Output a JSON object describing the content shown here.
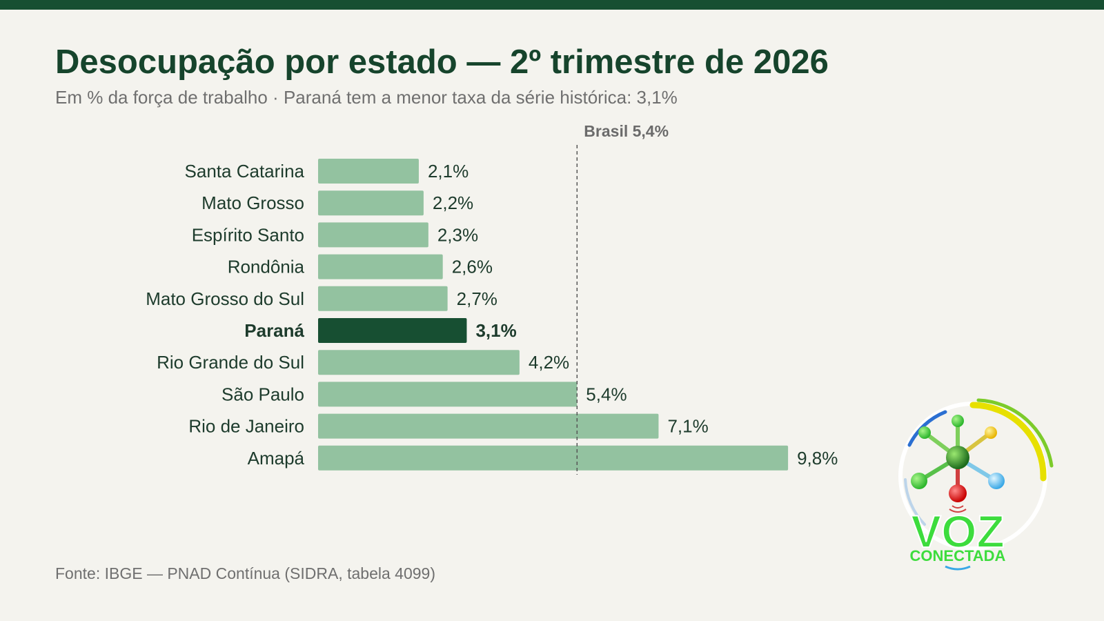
{
  "header": {
    "title": "Desocupação por estado — 2º trimestre de 2026",
    "subtitle": "Em % da força de trabalho · Paraná tem a menor taxa da série histórica: 3,1%"
  },
  "footer": {
    "source": "Fonte: IBGE — PNAD Contínua (SIDRA, tabela 4099)"
  },
  "logo": {
    "word": "VOZ",
    "subword": "CONECTADA"
  },
  "colors": {
    "bar": "#93c2a0",
    "highlight": "#174f32",
    "reference_line": "#555555",
    "top_bar": "#174f32"
  },
  "chart_data": {
    "type": "bar",
    "orientation": "horizontal",
    "categories": [
      "Santa Catarina",
      "Mato Grosso",
      "Espírito Santo",
      "Rondônia",
      "Mato Grosso do Sul",
      "Paraná",
      "Rio Grande do Sul",
      "São Paulo",
      "Rio de Janeiro",
      "Amapá"
    ],
    "values": [
      2.1,
      2.2,
      2.3,
      2.6,
      2.7,
      3.1,
      4.2,
      5.4,
      7.1,
      9.8
    ],
    "value_labels": [
      "2,1%",
      "2,2%",
      "2,3%",
      "2,6%",
      "2,7%",
      "3,1%",
      "4,2%",
      "5,4%",
      "7,1%",
      "9,8%"
    ],
    "highlight": "Paraná",
    "reference_line": {
      "value": 5.4,
      "label": "Brasil 5,4%"
    },
    "xlim": [
      0,
      11
    ],
    "grid": false
  }
}
